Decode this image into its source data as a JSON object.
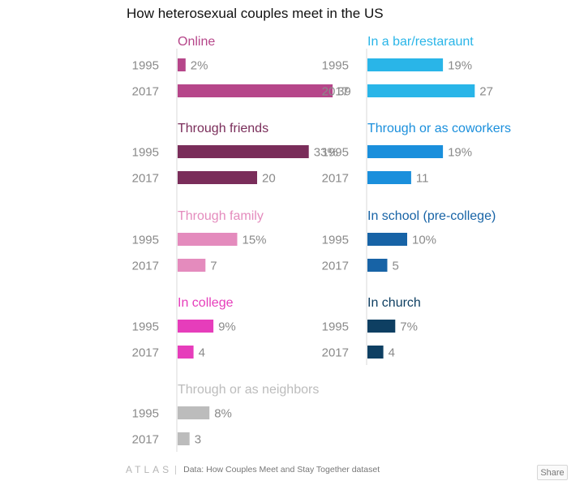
{
  "title": "How heterosexual couples meet in the US",
  "footer": {
    "logo": "ATLAS",
    "source": "Data:  How Couples Meet and Stay Together dataset",
    "share_label": "Share"
  },
  "chart_data": {
    "type": "bar",
    "orientation": "horizontal",
    "title": "How heterosexual couples meet in the US",
    "categories": [
      "1995",
      "2017"
    ],
    "unit": "%",
    "panels": [
      {
        "name": "Online",
        "color": "#b6468a",
        "values": [
          2,
          39
        ]
      },
      {
        "name": "In a bar/restaraunt",
        "color": "#29b5e8",
        "values": [
          19,
          27
        ]
      },
      {
        "name": "Through friends",
        "color": "#7a2d5a",
        "values": [
          33,
          20
        ]
      },
      {
        "name": "Through or as coworkers",
        "color": "#1a8fdc",
        "values": [
          19,
          11
        ]
      },
      {
        "name": "Through family",
        "color": "#e48bbd",
        "values": [
          15,
          7
        ]
      },
      {
        "name": "In school (pre-college)",
        "color": "#1763a6",
        "values": [
          10,
          5
        ]
      },
      {
        "name": "In college",
        "color": "#e63dbb",
        "values": [
          9,
          4
        ]
      },
      {
        "name": "In church",
        "color": "#0e3f62",
        "values": [
          7,
          4
        ]
      },
      {
        "name": "Through or as neighbors",
        "color": "#bcbcbc",
        "values": [
          8,
          3
        ]
      }
    ]
  }
}
